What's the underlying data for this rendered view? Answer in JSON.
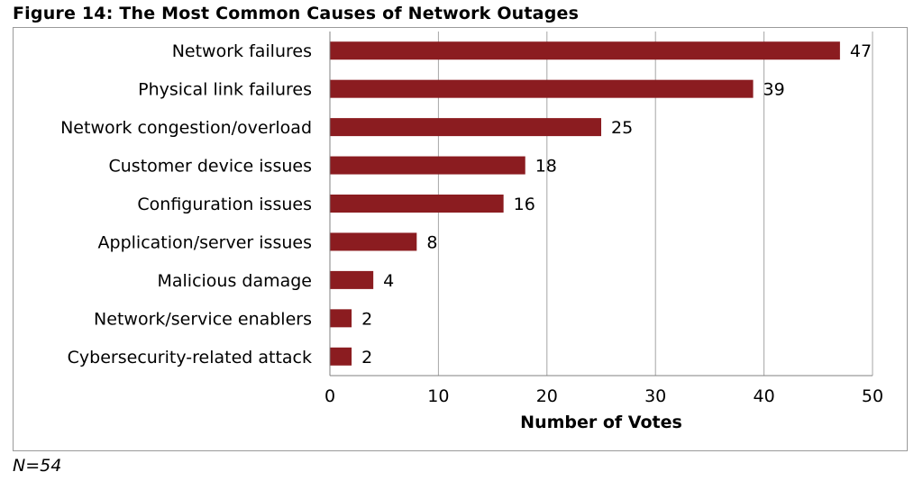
{
  "figure": {
    "title": "Figure 14: The Most Common Causes of Network Outages",
    "note": "N=54"
  },
  "colors": {
    "bar": "#8b1c20",
    "grid": "#a6a6a6",
    "axis": "#808080"
  },
  "chart_data": {
    "type": "bar",
    "orientation": "horizontal",
    "title": "Figure 14: The Most Common Causes of Network Outages",
    "xlabel": "Number of Votes",
    "ylabel": "",
    "xlim": [
      0,
      50
    ],
    "x_ticks": [
      0,
      10,
      20,
      30,
      40,
      50
    ],
    "grid": "vertical gridlines on",
    "legend": "none",
    "categories": [
      "Network failures",
      "Physical link failures",
      "Network congestion/overload",
      "Customer device issues",
      "Configuration issues",
      "Application/server issues",
      "Malicious damage",
      "Network/service enablers",
      "Cybersecurity-related attack"
    ],
    "values": [
      47,
      39,
      25,
      18,
      16,
      8,
      4,
      2,
      2
    ]
  }
}
